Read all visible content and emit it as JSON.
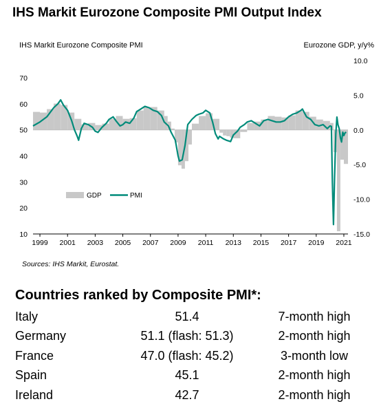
{
  "title": "IHS Markit Eurozone Composite PMI Output Index",
  "left_axis_title": "IHS Markit Eurozone Composite PMI",
  "right_axis_title": "Eurozone GDP, y/y%",
  "source": "Sources: IHS Markit, Eurostat.",
  "chart_data": {
    "type": "line",
    "series": [
      {
        "name": "PMI",
        "axis": "left",
        "color": "#008b7a",
        "x": [
          1998.5,
          1999.0,
          1999.5,
          2000.0,
          2000.3,
          2000.5,
          2000.7,
          2001.0,
          2001.3,
          2001.5,
          2001.7,
          2001.8,
          2002.0,
          2002.2,
          2002.5,
          2002.8,
          2003.0,
          2003.2,
          2003.5,
          2003.8,
          2004.0,
          2004.3,
          2004.5,
          2004.8,
          2005.0,
          2005.2,
          2005.5,
          2005.8,
          2006.0,
          2006.3,
          2006.6,
          2006.9,
          2007.2,
          2007.5,
          2007.8,
          2008.0,
          2008.3,
          2008.5,
          2008.8,
          2008.9,
          2009.0,
          2009.1,
          2009.3,
          2009.5,
          2009.7,
          2010.0,
          2010.3,
          2010.5,
          2010.8,
          2011.0,
          2011.3,
          2011.5,
          2011.7,
          2011.9,
          2012.0,
          2012.3,
          2012.5,
          2012.8,
          2013.0,
          2013.3,
          2013.5,
          2013.8,
          2014.0,
          2014.3,
          2014.6,
          2014.9,
          2015.2,
          2015.5,
          2015.8,
          2016.1,
          2016.4,
          2016.7,
          2017.0,
          2017.3,
          2017.6,
          2017.9,
          2018.0,
          2018.3,
          2018.6,
          2018.9,
          2019.2,
          2019.5,
          2019.8,
          2020.0,
          2020.1,
          2020.17,
          2020.25,
          2020.33,
          2020.42,
          2020.5,
          2020.58,
          2020.67,
          2020.75,
          2020.83,
          2020.92,
          2021.0,
          2021.08,
          2021.17
        ],
        "values": [
          51.5,
          53.0,
          55.0,
          58.5,
          60.0,
          61.5,
          59.5,
          57.5,
          53.5,
          50.0,
          47.5,
          46.0,
          50.5,
          52.5,
          52.0,
          51.0,
          49.5,
          49.0,
          51.0,
          52.5,
          54.0,
          55.0,
          53.5,
          51.5,
          52.0,
          53.0,
          52.5,
          54.5,
          57.0,
          58.0,
          59.0,
          58.5,
          57.5,
          57.0,
          55.5,
          53.0,
          51.5,
          49.0,
          46.0,
          43.0,
          40.0,
          38.0,
          38.5,
          44.0,
          52.0,
          54.0,
          55.5,
          56.0,
          56.5,
          57.5,
          56.5,
          53.0,
          48.5,
          46.5,
          47.5,
          46.5,
          46.0,
          45.5,
          48.0,
          49.5,
          51.0,
          52.0,
          53.0,
          53.5,
          52.5,
          51.5,
          53.5,
          54.0,
          53.5,
          53.0,
          53.0,
          53.5,
          55.0,
          56.0,
          56.5,
          57.5,
          58.0,
          55.0,
          54.0,
          52.0,
          51.5,
          52.0,
          50.5,
          51.5,
          51.3,
          29.7,
          13.6,
          31.9,
          48.5,
          54.9,
          51.9,
          50.4,
          46.9,
          45.3,
          49.1,
          47.8,
          48.8,
          49.1
        ]
      },
      {
        "name": "GDP",
        "axis": "right",
        "color": "#c8c8c8",
        "x": [
          1998.5,
          1999.0,
          1999.5,
          2000.0,
          2000.5,
          2001.0,
          2001.5,
          2002.0,
          2002.5,
          2003.0,
          2003.5,
          2004.0,
          2004.5,
          2005.0,
          2005.5,
          2006.0,
          2006.5,
          2007.0,
          2007.5,
          2008.0,
          2008.25,
          2008.5,
          2008.75,
          2009.0,
          2009.25,
          2009.5,
          2009.75,
          2010.0,
          2010.5,
          2011.0,
          2011.5,
          2012.0,
          2012.25,
          2012.5,
          2012.75,
          2013.0,
          2013.5,
          2014.0,
          2014.5,
          2015.0,
          2015.5,
          2016.0,
          2016.5,
          2017.0,
          2017.5,
          2018.0,
          2018.5,
          2019.0,
          2019.5,
          2020.0,
          2020.25,
          2020.5,
          2020.75,
          2021.0
        ],
        "values": [
          2.6,
          2.5,
          3.0,
          3.8,
          3.6,
          2.5,
          1.6,
          0.8,
          1.0,
          0.7,
          0.9,
          1.6,
          2.0,
          1.6,
          1.7,
          2.8,
          3.3,
          3.3,
          2.8,
          2.0,
          1.2,
          0.2,
          -1.8,
          -5.1,
          -5.6,
          -4.5,
          -2.1,
          0.9,
          2.0,
          2.4,
          1.6,
          -0.4,
          -0.8,
          -0.9,
          -1.1,
          -1.2,
          -0.3,
          1.0,
          1.2,
          1.5,
          2.0,
          1.9,
          1.8,
          2.1,
          2.8,
          2.6,
          1.9,
          1.5,
          1.3,
          1.0,
          -3.2,
          -14.6,
          -4.3,
          -4.9
        ]
      }
    ],
    "x_range": [
      1998.5,
      2021.3
    ],
    "x_ticks": [
      "1999",
      "2001",
      "2003",
      "2005",
      "2007",
      "2009",
      "2011",
      "2013",
      "2015",
      "2017",
      "2019",
      "2021"
    ],
    "x_tick_values": [
      1999,
      2001,
      2003,
      2005,
      2007,
      2009,
      2011,
      2013,
      2015,
      2017,
      2019,
      2021
    ],
    "left_ylim": [
      10,
      70
    ],
    "left_ticks": [
      "10",
      "20",
      "30",
      "40",
      "50",
      "60",
      "70"
    ],
    "right_ylim": [
      -15,
      10
    ],
    "right_ticks": [
      "10.0",
      "5.0",
      "0.0",
      "-5.0",
      "-10.0",
      "-15.0"
    ],
    "legend": {
      "position": "lower-left",
      "labels": [
        "GDP",
        "PMI"
      ]
    },
    "grid": false
  },
  "ranking": {
    "title": "Countries ranked by Composite PMI*:",
    "rows": [
      {
        "country": "Italy",
        "value": "51.4",
        "note": "7-month high"
      },
      {
        "country": "Germany",
        "value": "51.1 (flash: 51.3)",
        "note": "2-month high"
      },
      {
        "country": "France",
        "value": "47.0 (flash: 45.2)",
        "note": "3-month low"
      },
      {
        "country": "Spain",
        "value": "45.1",
        "note": "2-month high"
      },
      {
        "country": "Ireland",
        "value": "42.7",
        "note": "2-month high"
      }
    ]
  }
}
